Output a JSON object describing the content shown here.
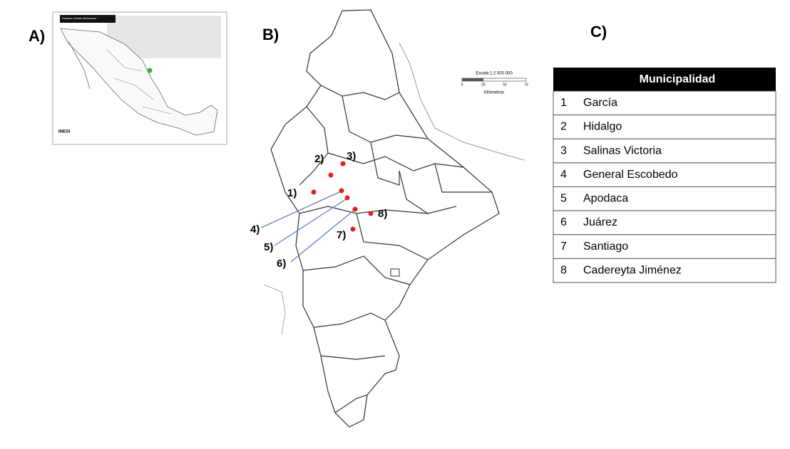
{
  "panels": {
    "a": {
      "label": "A)",
      "map_title": "Estados Unidos Mexicanos",
      "logo": "INEGI"
    },
    "b": {
      "label": "B)",
      "markers": [
        "1)",
        "2)",
        "3)",
        "4)",
        "5)",
        "6)",
        "7)",
        "8)"
      ],
      "scale": {
        "title": "Escala 1:2 500 000",
        "ticks": [
          "0",
          "25",
          "50",
          "75"
        ],
        "unit": "Kilómetros"
      }
    },
    "c": {
      "label": "C)",
      "table": {
        "header": "Municipalidad",
        "rows": [
          [
            "1",
            "García"
          ],
          [
            "2",
            "Hidalgo"
          ],
          [
            "3",
            "Salinas  Victoria"
          ],
          [
            "4",
            "General Escobedo"
          ],
          [
            "5",
            "Apodaca"
          ],
          [
            "6",
            "Juárez"
          ],
          [
            "7",
            "Santiago"
          ],
          [
            "8",
            "Cadereyta Jiménez"
          ]
        ]
      }
    }
  }
}
